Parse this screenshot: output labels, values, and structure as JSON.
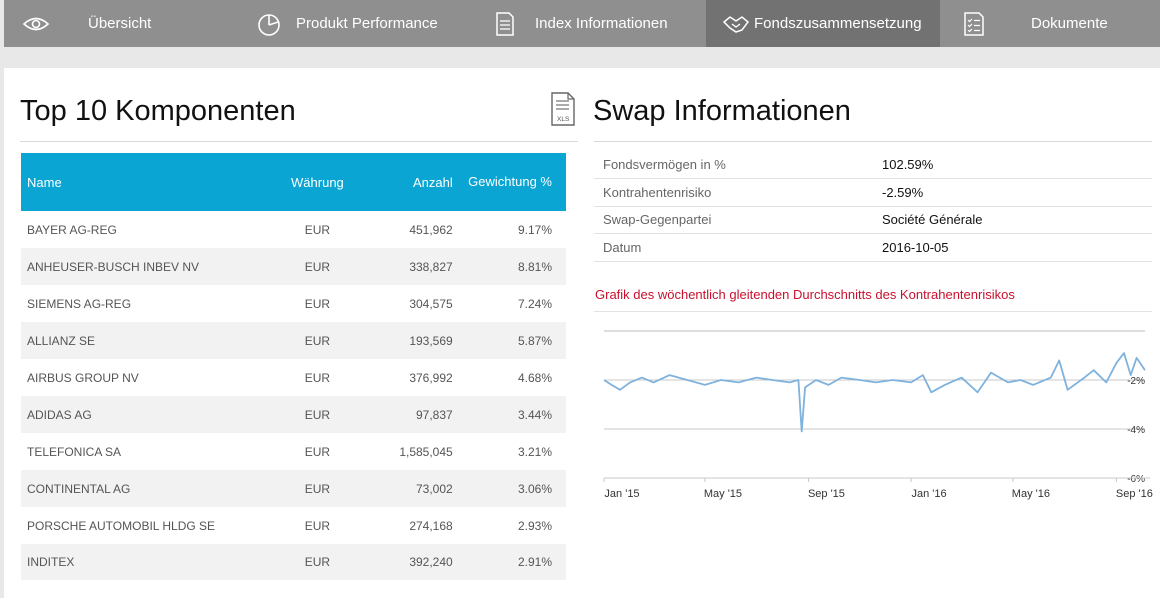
{
  "nav": {
    "tabs": [
      {
        "label": "Übersicht",
        "icon": "eye-icon"
      },
      {
        "label": "Produkt Performance",
        "icon": "pie-chart-icon"
      },
      {
        "label": "Index Informationen",
        "icon": "document-icon"
      },
      {
        "label": "Fondszusammensetzung",
        "icon": "handshake-icon",
        "active": true
      },
      {
        "label": "Dokumente",
        "icon": "checklist-icon"
      }
    ]
  },
  "components": {
    "title": "Top 10 Komponenten",
    "columns": {
      "name": "Name",
      "currency": "Währung",
      "count": "Anzahl",
      "weight": "Gewichtung %"
    },
    "rows": [
      {
        "name": "BAYER AG-REG",
        "currency": "EUR",
        "count": "451,962",
        "weight": "9.17%"
      },
      {
        "name": "ANHEUSER-BUSCH INBEV NV",
        "currency": "EUR",
        "count": "338,827",
        "weight": "8.81%"
      },
      {
        "name": "SIEMENS AG-REG",
        "currency": "EUR",
        "count": "304,575",
        "weight": "7.24%"
      },
      {
        "name": "ALLIANZ SE",
        "currency": "EUR",
        "count": "193,569",
        "weight": "5.87%"
      },
      {
        "name": "AIRBUS GROUP NV",
        "currency": "EUR",
        "count": "376,992",
        "weight": "4.68%"
      },
      {
        "name": "ADIDAS AG",
        "currency": "EUR",
        "count": "97,837",
        "weight": "3.44%"
      },
      {
        "name": "TELEFONICA SA",
        "currency": "EUR",
        "count": "1,585,045",
        "weight": "3.21%"
      },
      {
        "name": "CONTINENTAL AG",
        "currency": "EUR",
        "count": "73,002",
        "weight": "3.06%"
      },
      {
        "name": "PORSCHE AUTOMOBIL HLDG SE",
        "currency": "EUR",
        "count": "274,168",
        "weight": "2.93%"
      },
      {
        "name": "INDITEX",
        "currency": "EUR",
        "count": "392,240",
        "weight": "2.91%"
      }
    ],
    "export_icon": "xls-file-icon",
    "export_icon_text": "XLS"
  },
  "swap": {
    "title": "Swap Informationen",
    "rows": [
      {
        "key": "Fondsvermögen in %",
        "value": "102.59%"
      },
      {
        "key": "Kontrahentenrisiko",
        "value": "-2.59%"
      },
      {
        "key": "Swap-Gegenpartei",
        "value": "Société Générale"
      },
      {
        "key": "Datum",
        "value": "2016-10-05"
      }
    ],
    "chart_title": "Grafik des wöchentlich gleitenden Durchschnitts des Kontrahentenrisikos"
  },
  "colors": {
    "nav_bg": "#8f8f8f",
    "nav_active": "#727272",
    "table_header": "#0aa5d3",
    "chart_line": "#7fb2dd",
    "chart_title": "#c8102e"
  },
  "chart_data": {
    "type": "line",
    "title": "Grafik des wöchentlich gleitenden Durchschnitts des Kontrahentenrisikos",
    "xlabel": "",
    "ylabel": "",
    "x_ticks": [
      "Jan '15",
      "May '15",
      "Sep '15",
      "Jan '16",
      "May '16",
      "Sep '16"
    ],
    "y_ticks": [
      "-2%",
      "-4%",
      "-6%"
    ],
    "ylim": [
      -6,
      0
    ],
    "grid": true,
    "series": [
      {
        "name": "Kontrahentenrisiko",
        "points": [
          [
            "2015-01-01",
            -2.0
          ],
          [
            "2015-01-10",
            -2.2
          ],
          [
            "2015-01-20",
            -2.4
          ],
          [
            "2015-02-01",
            -2.1
          ],
          [
            "2015-02-15",
            -1.9
          ],
          [
            "2015-03-01",
            -2.1
          ],
          [
            "2015-03-20",
            -1.8
          ],
          [
            "2015-04-10",
            -2.0
          ],
          [
            "2015-05-01",
            -2.2
          ],
          [
            "2015-05-20",
            -2.0
          ],
          [
            "2015-06-10",
            -2.1
          ],
          [
            "2015-07-01",
            -1.9
          ],
          [
            "2015-07-20",
            -2.0
          ],
          [
            "2015-08-10",
            -2.1
          ],
          [
            "2015-08-20",
            -2.0
          ],
          [
            "2015-08-24",
            -4.1
          ],
          [
            "2015-08-28",
            -2.3
          ],
          [
            "2015-09-10",
            -2.0
          ],
          [
            "2015-09-25",
            -2.2
          ],
          [
            "2015-10-10",
            -1.9
          ],
          [
            "2015-11-01",
            -2.0
          ],
          [
            "2015-11-20",
            -2.1
          ],
          [
            "2015-12-10",
            -2.0
          ],
          [
            "2016-01-01",
            -2.1
          ],
          [
            "2016-01-15",
            -1.8
          ],
          [
            "2016-01-25",
            -2.5
          ],
          [
            "2016-02-10",
            -2.2
          ],
          [
            "2016-03-01",
            -1.9
          ],
          [
            "2016-03-20",
            -2.5
          ],
          [
            "2016-04-05",
            -1.7
          ],
          [
            "2016-04-25",
            -2.1
          ],
          [
            "2016-05-10",
            -2.0
          ],
          [
            "2016-05-25",
            -2.2
          ],
          [
            "2016-06-15",
            -1.9
          ],
          [
            "2016-06-25",
            -1.2
          ],
          [
            "2016-07-05",
            -2.4
          ],
          [
            "2016-07-25",
            -1.9
          ],
          [
            "2016-08-05",
            -1.6
          ],
          [
            "2016-08-20",
            -2.1
          ],
          [
            "2016-09-01",
            -1.3
          ],
          [
            "2016-09-10",
            -0.9
          ],
          [
            "2016-09-18",
            -1.8
          ],
          [
            "2016-09-25",
            -1.1
          ],
          [
            "2016-10-05",
            -1.6
          ]
        ]
      }
    ]
  }
}
